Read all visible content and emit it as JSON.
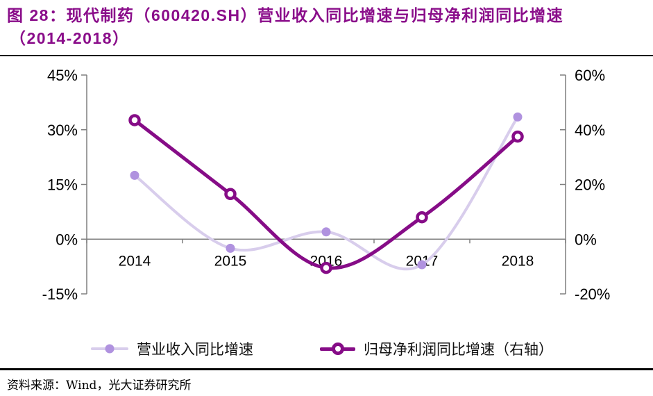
{
  "title": {
    "line1": "图 28：现代制药（600420.SH）营业收入同比增速与归母净利润同比增速",
    "line2": "（2014-2018）"
  },
  "source": "资料来源：Wind，光大证券研究所",
  "legend": {
    "revenue_label": "营业收入同比增速",
    "profit_label": "归母净利润同比增速（右轴）"
  },
  "colors": {
    "title": "#8A0D8A",
    "revenue_line": "#D8CDEC",
    "revenue_marker": "#B092DF",
    "profit_line": "#860C87",
    "axis_line": "#7F7F7F",
    "zero_line": "#7F7F7F",
    "tick_text": "#000000"
  },
  "chart_data": {
    "type": "line",
    "smooth": true,
    "grid": false,
    "legend_position": "bottom",
    "categories": [
      "2014",
      "2015",
      "2016",
      "2017",
      "2018"
    ],
    "series": [
      {
        "name": "营业收入同比增速",
        "axis": "left",
        "values": [
          17.5,
          -2.5,
          2,
          -7,
          33.5
        ],
        "line_color": "#D8CDEC",
        "marker": "filled-dot",
        "marker_color": "#B092DF"
      },
      {
        "name": "归母净利润同比增速（右轴）",
        "axis": "right",
        "values": [
          43.5,
          16.5,
          -10.5,
          8,
          37.5
        ],
        "line_color": "#860C87",
        "marker": "open-circle",
        "marker_color": "#860C87"
      }
    ],
    "left_axis": {
      "min": -15,
      "max": 45,
      "tick_values": [
        45,
        30,
        15,
        0,
        -15
      ],
      "tick_labels": [
        "45%",
        "30%",
        "15%",
        "0%",
        "-15%"
      ]
    },
    "right_axis": {
      "min": -20,
      "max": 60,
      "tick_values": [
        60,
        40,
        20,
        0,
        -20
      ],
      "tick_labels": [
        "60%",
        "40%",
        "20%",
        "0%",
        "-20%"
      ]
    }
  }
}
